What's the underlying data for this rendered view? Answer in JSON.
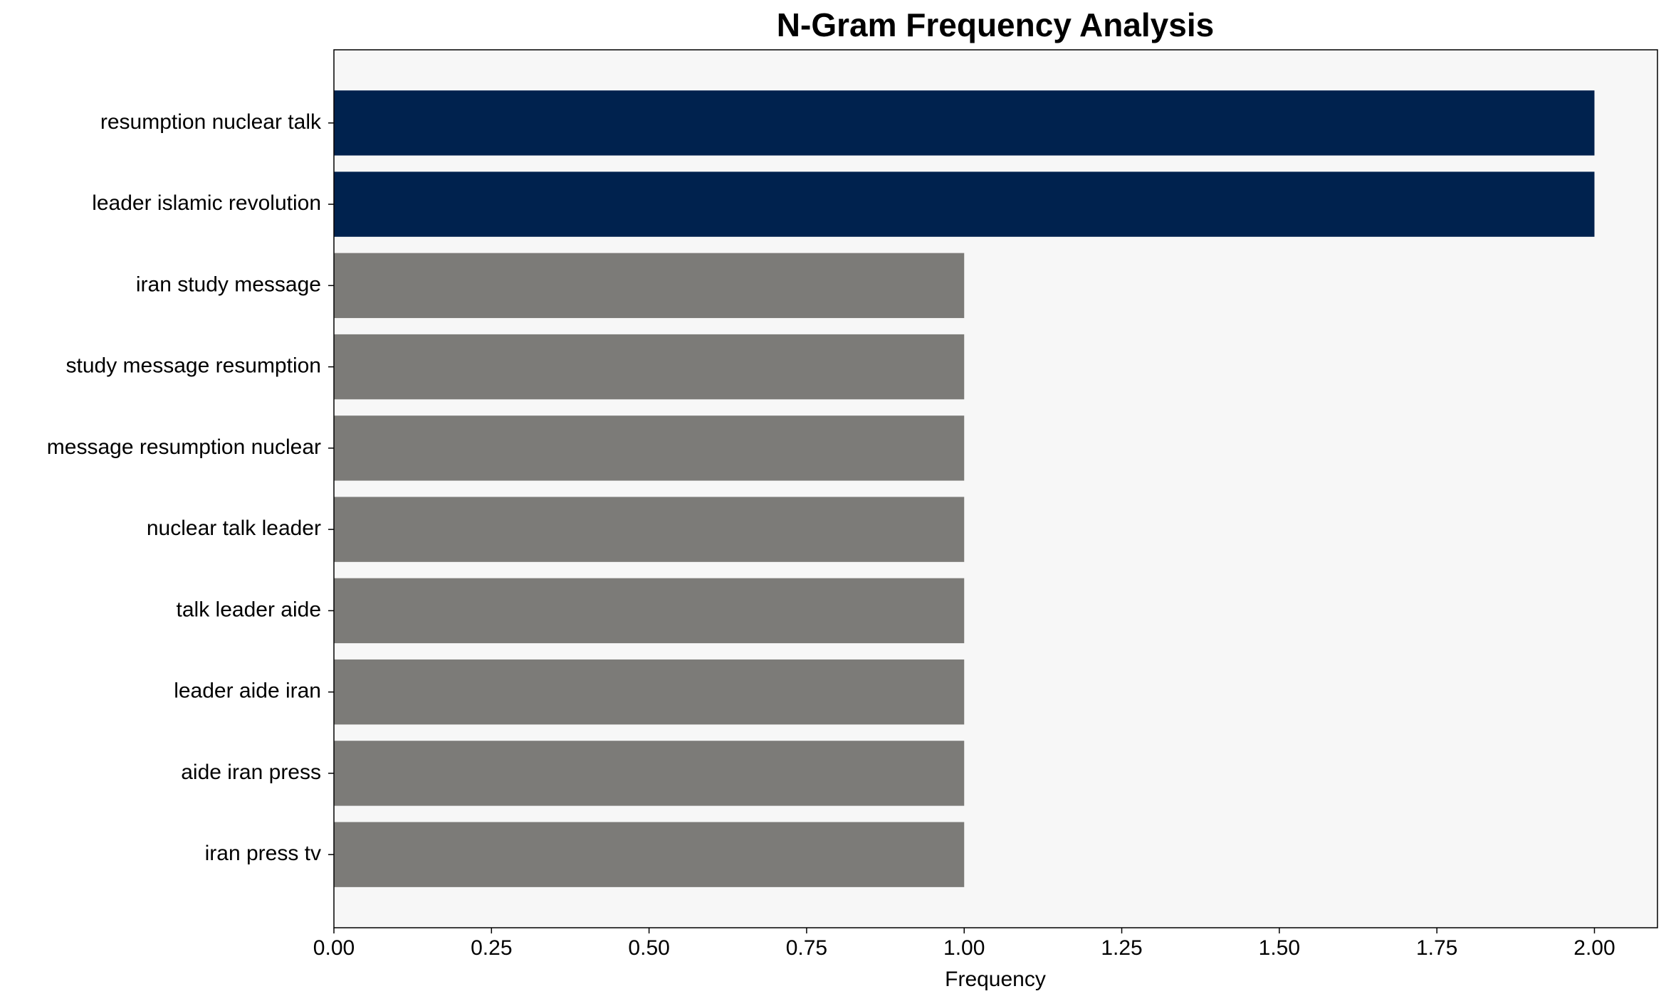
{
  "chart_data": {
    "type": "barh",
    "title": "N-Gram Frequency Analysis",
    "x_label": "Frequency",
    "categories": [
      "resumption nuclear talk",
      "leader islamic revolution",
      "iran study message",
      "study message resumption",
      "message resumption nuclear",
      "nuclear talk leader",
      "talk leader aide",
      "leader aide iran",
      "aide iran press",
      "iran press tv"
    ],
    "values": [
      2,
      2,
      1,
      1,
      1,
      1,
      1,
      1,
      1,
      1
    ],
    "colors": [
      "#00224e",
      "#00224e",
      "#7c7b78",
      "#7c7b78",
      "#7c7b78",
      "#7c7b78",
      "#7c7b78",
      "#7c7b78",
      "#7c7b78",
      "#7c7b78"
    ],
    "xlim": [
      0,
      2.1
    ],
    "xticks": [
      {
        "value": 0,
        "label": "0.00"
      },
      {
        "value": 0.25,
        "label": "0.25"
      },
      {
        "value": 0.5,
        "label": "0.50"
      },
      {
        "value": 0.75,
        "label": "0.75"
      },
      {
        "value": 1,
        "label": "1.00"
      },
      {
        "value": 1.25,
        "label": "1.25"
      },
      {
        "value": 1.5,
        "label": "1.50"
      },
      {
        "value": 1.75,
        "label": "1.75"
      },
      {
        "value": 2,
        "label": "2.00"
      }
    ],
    "background": "#f7f7f7"
  }
}
